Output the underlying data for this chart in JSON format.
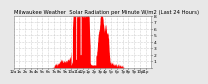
{
  "title": "Milwaukee Weather  Solar Radiation per Minute W/m2 (Last 24 Hours)",
  "title_fontsize": 3.8,
  "background_color": "#e8e8e8",
  "plot_bg_color": "#ffffff",
  "bar_color": "#ff0000",
  "grid_color": "#aaaaaa",
  "grid_style": "dotted",
  "ylim": [
    0,
    800
  ],
  "ytick_labels": [
    "8",
    "7",
    "6",
    "5",
    "4",
    "3",
    "2",
    "1",
    ""
  ],
  "ytick_values": [
    800,
    700,
    600,
    500,
    400,
    300,
    200,
    100,
    0
  ],
  "ylabel_fontsize": 3.2,
  "xlabel_fontsize": 2.8,
  "num_points": 1440,
  "x_tick_interval": 60,
  "axis_color": "#333333"
}
